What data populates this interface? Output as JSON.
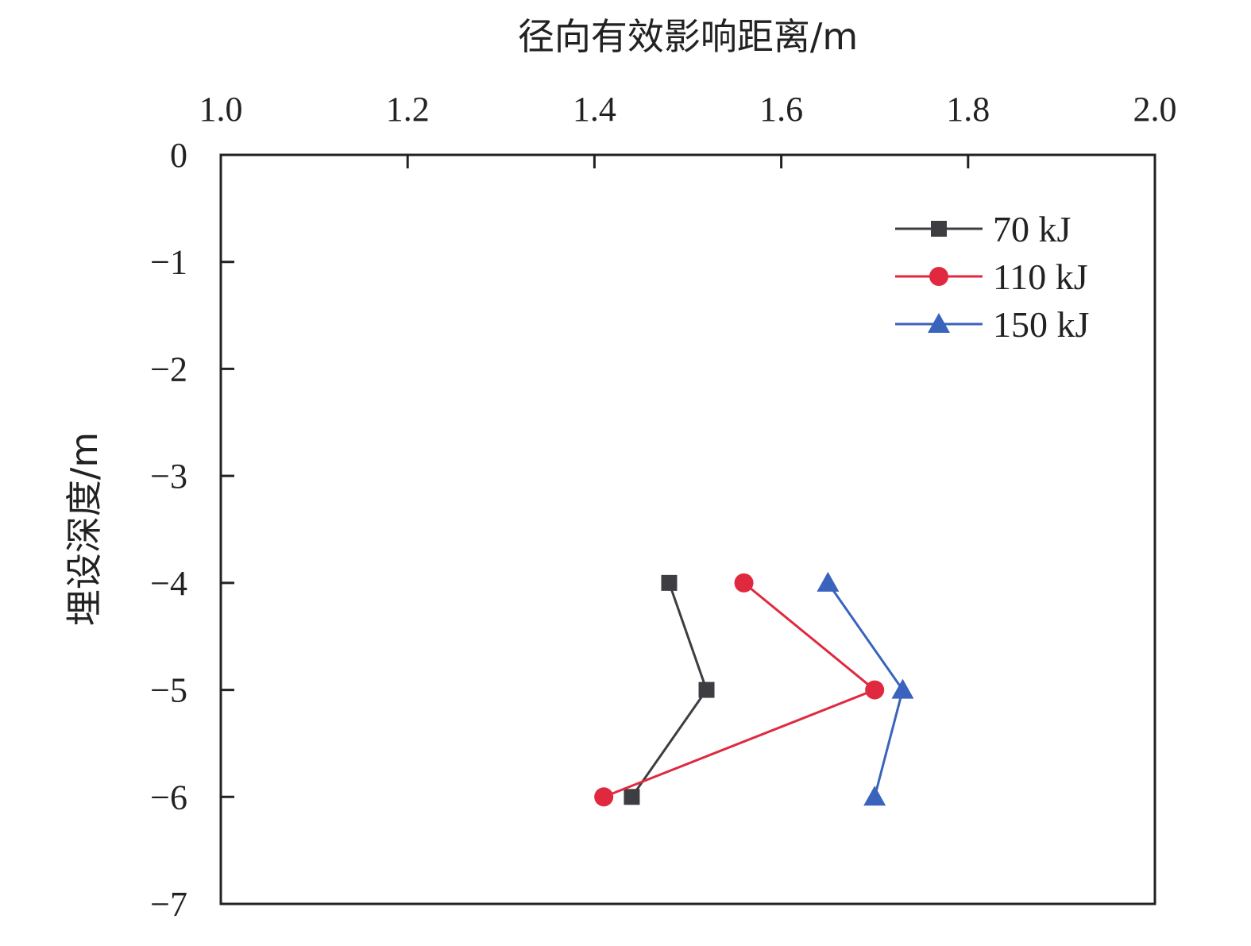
{
  "chart_data": {
    "type": "line",
    "xlabel": "径向有效影响距离/m",
    "ylabel": "埋设深度/m",
    "xlim": [
      1.0,
      2.0
    ],
    "ylim": [
      -7,
      0
    ],
    "x_ticks": [
      1.0,
      1.2,
      1.4,
      1.6,
      1.8,
      2.0
    ],
    "x_tick_labels": [
      "1.0",
      "1.2",
      "1.4",
      "1.6",
      "1.8",
      "2.0"
    ],
    "y_ticks": [
      0,
      -1,
      -2,
      -3,
      -4,
      -5,
      -6,
      -7
    ],
    "y_tick_labels": [
      "0",
      "−1",
      "−2",
      "−3",
      "−4",
      "−5",
      "−6",
      "−7"
    ],
    "x_axis_position": "top",
    "grid": false,
    "legend_position": "top-right",
    "series": [
      {
        "name": "70 kJ",
        "color": "#3d3d42",
        "marker": "square",
        "x": [
          1.48,
          1.52,
          1.44
        ],
        "y": [
          -4,
          -5,
          -6
        ]
      },
      {
        "name": "110 kJ",
        "color": "#e0293f",
        "marker": "circle",
        "x": [
          1.56,
          1.7,
          1.41
        ],
        "y": [
          -4,
          -5,
          -6
        ]
      },
      {
        "name": "150 kJ",
        "color": "#3a63bd",
        "marker": "triangle",
        "x": [
          1.65,
          1.73,
          1.7
        ],
        "y": [
          -4,
          -5,
          -6
        ]
      }
    ]
  }
}
